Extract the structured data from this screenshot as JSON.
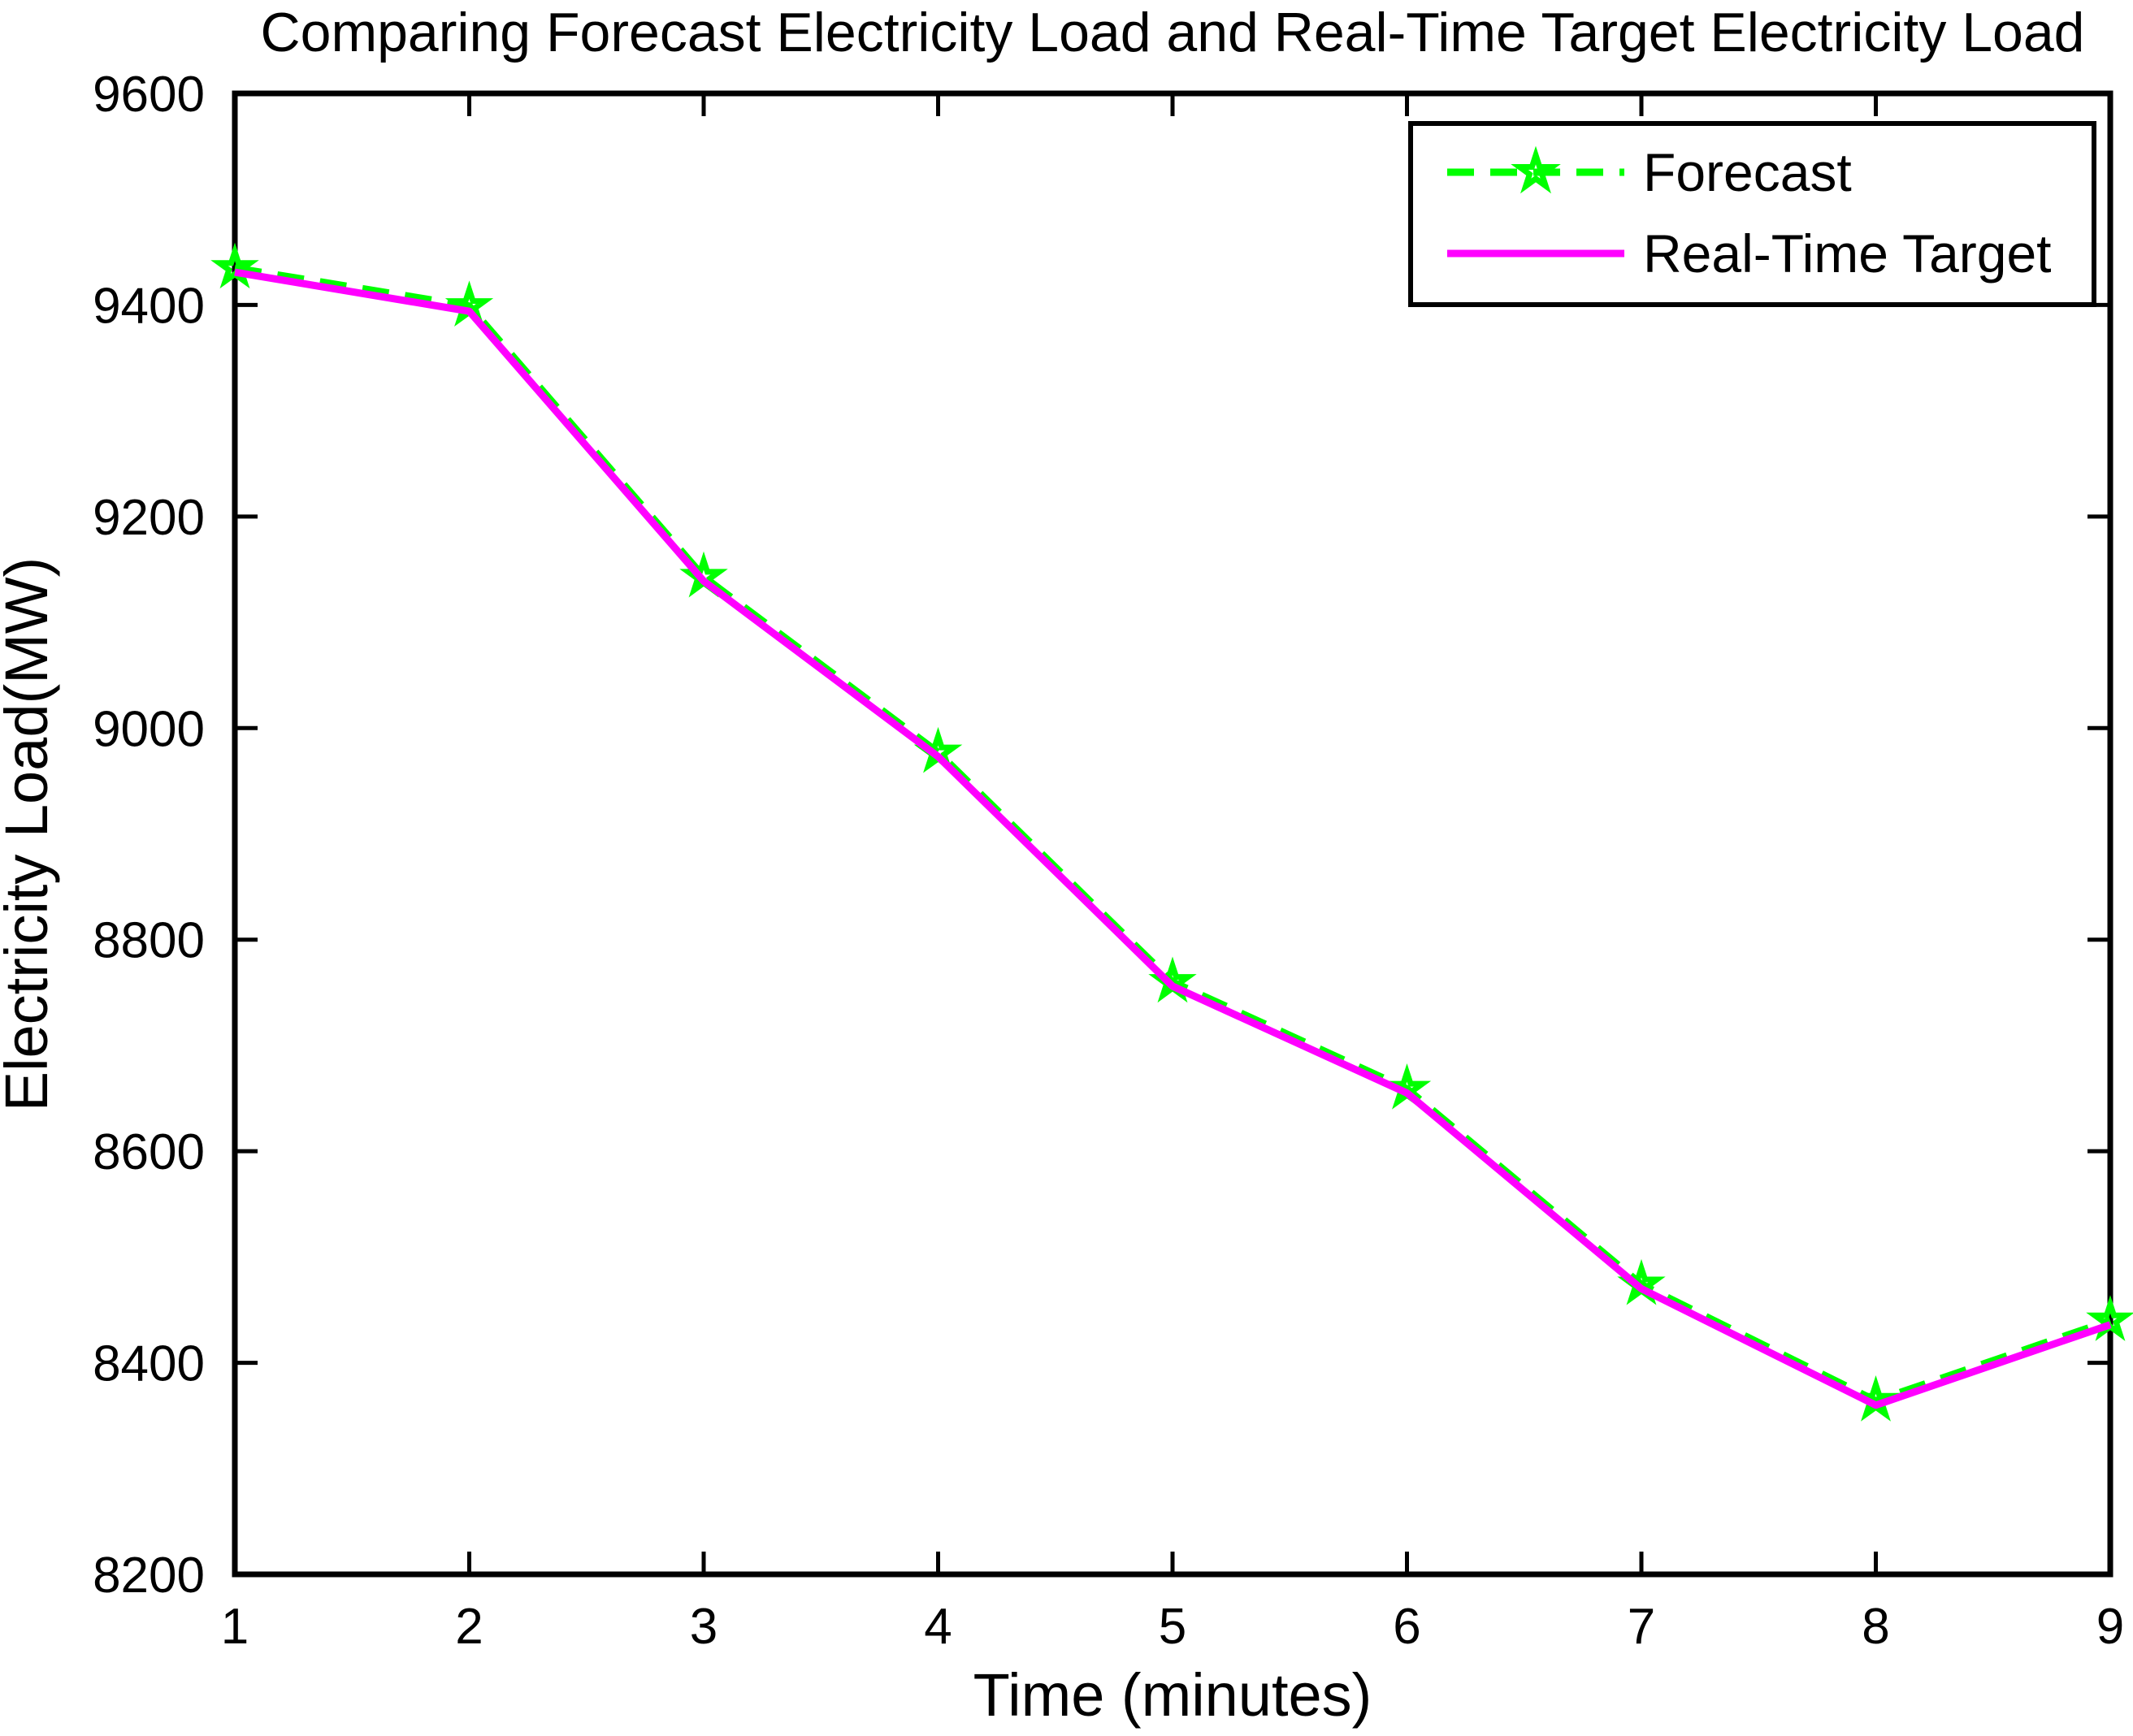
{
  "figure": {
    "background": "#ffffff",
    "axis_color": "#000000"
  },
  "chart_data": {
    "type": "line",
    "title": "Comparing Forecast Electricity Load and Real-Time Target Electricity Load",
    "xlabel": "Time (minutes)",
    "ylabel": "Electricity Load(MW)",
    "xlim": [
      1,
      9
    ],
    "ylim": [
      8200,
      9600
    ],
    "xticks": [
      1,
      2,
      3,
      4,
      5,
      6,
      7,
      8,
      9
    ],
    "yticks": [
      8200,
      8400,
      8600,
      8800,
      9000,
      9200,
      9400,
      9600
    ],
    "grid": false,
    "legend": {
      "position": "top-right",
      "entries": [
        "Forecast",
        "Real-Time Target"
      ]
    },
    "x": [
      1,
      2,
      3,
      4,
      5,
      6,
      7,
      8,
      9
    ],
    "series": [
      {
        "name": "Forecast",
        "color": "#00ff00",
        "line_style": "dashed",
        "marker": "pentagram",
        "values": [
          9435,
          9399,
          9143,
          8977,
          8760,
          8659,
          8474,
          8364,
          8440
        ]
      },
      {
        "name": "Real-Time Target",
        "color": "#ff00ff",
        "line_style": "solid",
        "marker": "none",
        "values": [
          9431,
          9394,
          9139,
          8973,
          8756,
          8655,
          8470,
          8360,
          8436
        ]
      }
    ]
  }
}
